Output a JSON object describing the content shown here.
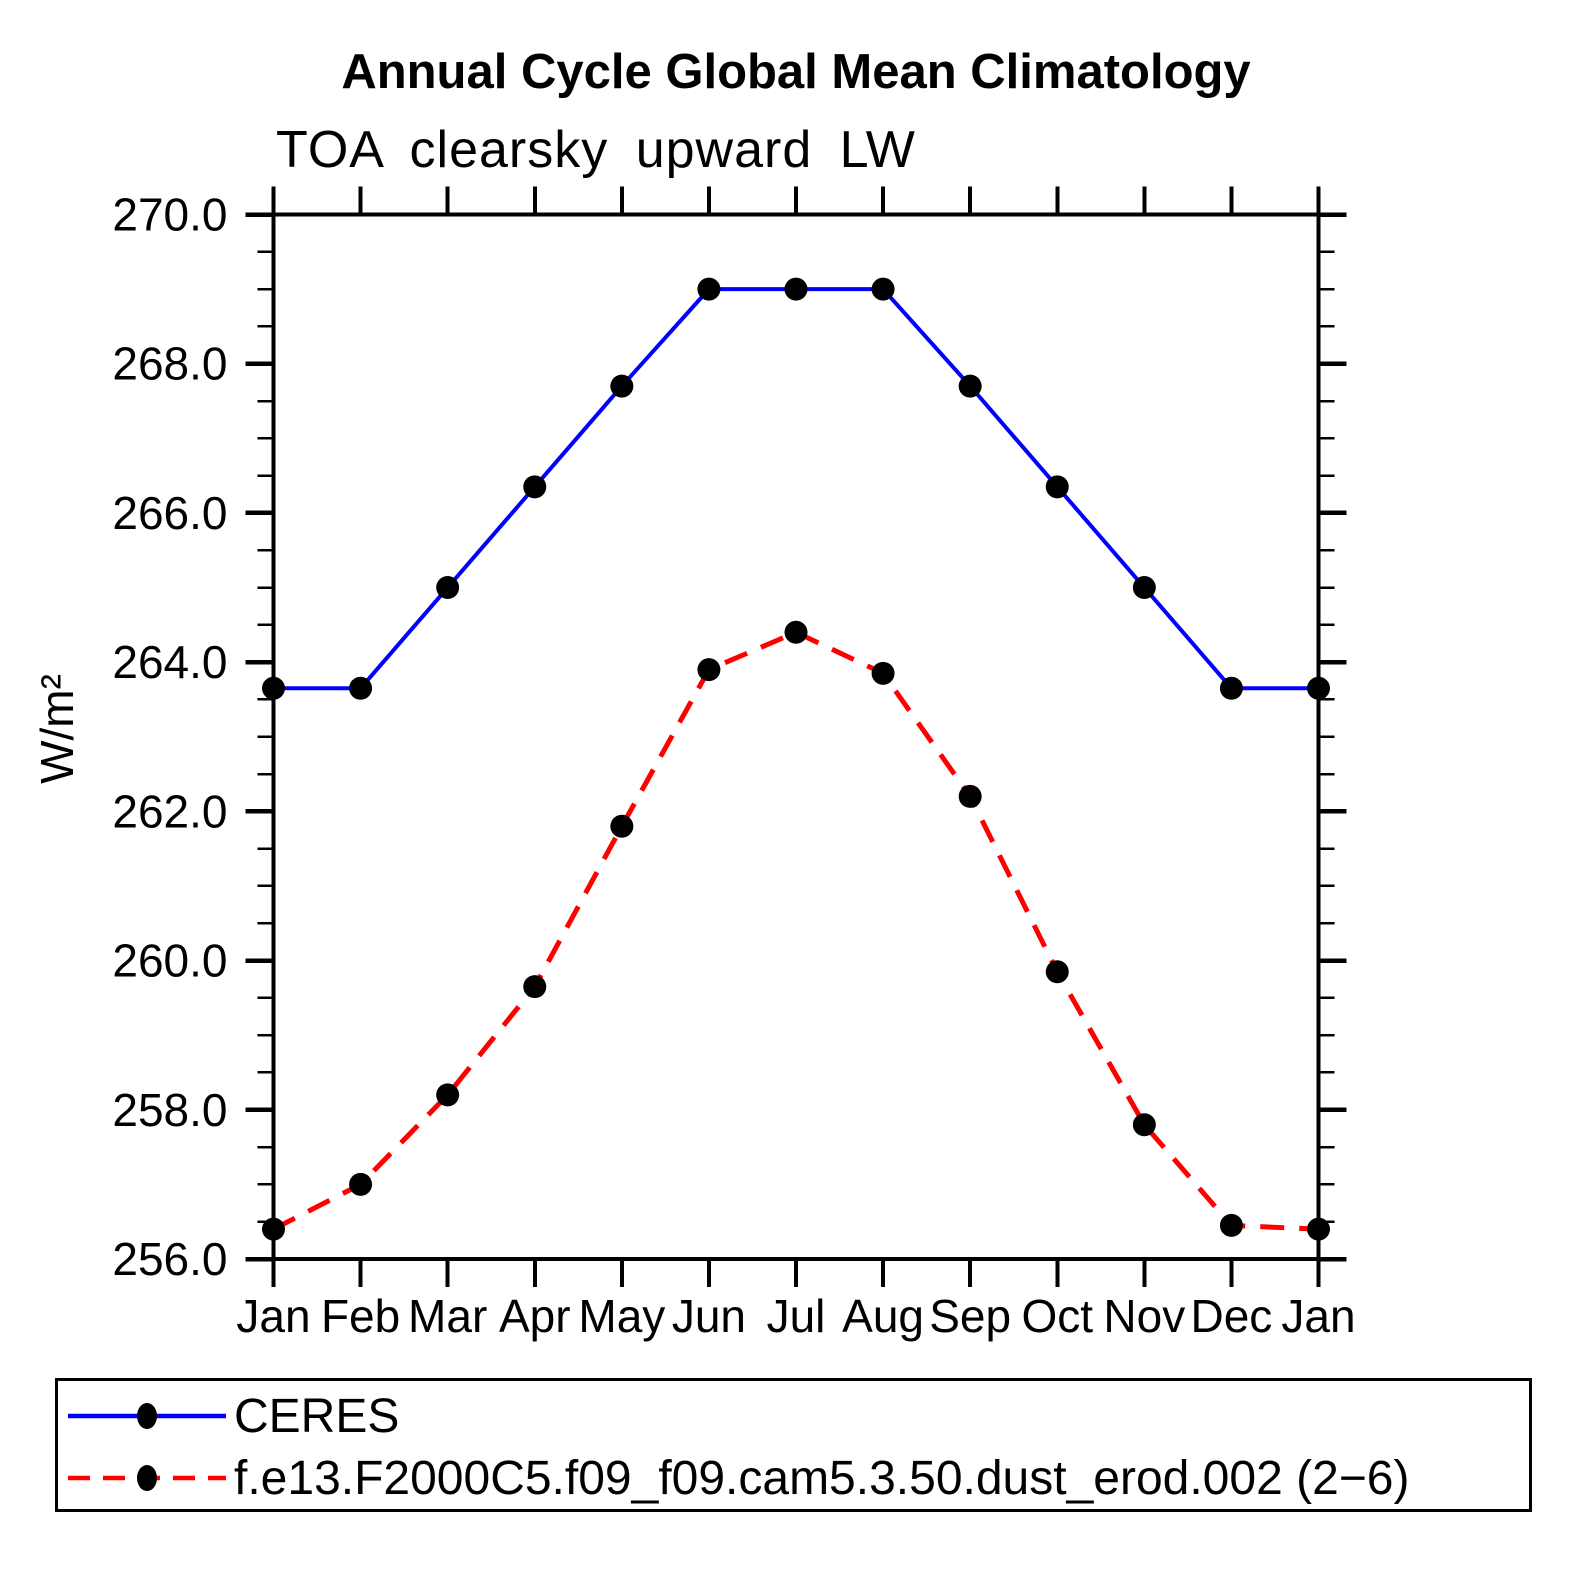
{
  "chart_data": {
    "type": "line",
    "title": "Annual Cycle Global Mean Climatology",
    "subtitle": "TOA clearsky upward LW",
    "ylabel": "W/m²",
    "x_categories": [
      "Jan",
      "Feb",
      "Mar",
      "Apr",
      "May",
      "Jun",
      "Jul",
      "Aug",
      "Sep",
      "Oct",
      "Nov",
      "Dec",
      "Jan"
    ],
    "ylim": [
      256.0,
      270.0
    ],
    "ytick_major_interval": 2.0,
    "ytick_minor_interval": 0.5,
    "ytick_labels": [
      "256.0",
      "258.0",
      "260.0",
      "262.0",
      "264.0",
      "266.0",
      "268.0",
      "270.0"
    ],
    "grid": false,
    "legend_position": "bottom",
    "series": [
      {
        "name": "CERES",
        "color": "#0000ff",
        "line_style": "solid",
        "marker": "circle",
        "marker_color": "#000000",
        "values": [
          263.65,
          263.65,
          265.0,
          266.35,
          267.7,
          269.0,
          269.0,
          269.0,
          267.7,
          266.35,
          265.0,
          263.65,
          263.65
        ]
      },
      {
        "name": "f.e13.F2000C5.f09_f09.cam5.3.50.dust_erod.002 (2−6)",
        "color": "#ff0000",
        "line_style": "dashed",
        "marker": "circle",
        "marker_color": "#000000",
        "values": [
          256.4,
          257.0,
          258.2,
          259.65,
          261.8,
          263.9,
          264.4,
          263.85,
          262.2,
          259.85,
          257.8,
          256.45,
          256.4
        ]
      }
    ]
  },
  "colors": {
    "background": "#ffffff",
    "axis": "#000000"
  }
}
